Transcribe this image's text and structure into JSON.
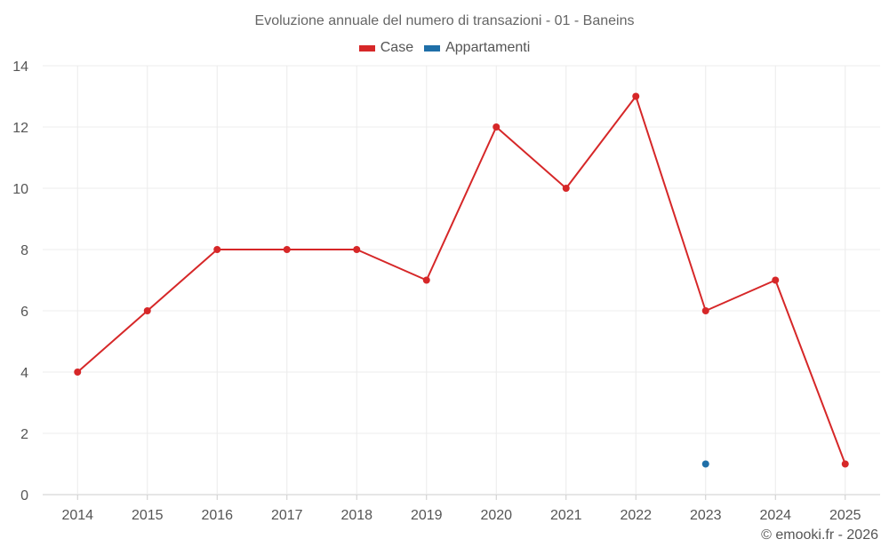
{
  "chart_data": {
    "type": "line",
    "title": "Evoluzione annuale del numero di transazioni - 01 - Baneins",
    "xlabel": "",
    "ylabel": "",
    "categories": [
      "2014",
      "2015",
      "2016",
      "2017",
      "2018",
      "2019",
      "2020",
      "2021",
      "2022",
      "2023",
      "2024",
      "2025"
    ],
    "ylim": [
      0,
      14
    ],
    "yticks": [
      0,
      2,
      4,
      6,
      8,
      10,
      12,
      14
    ],
    "grid": true,
    "legend_position": "top-center",
    "series": [
      {
        "name": "Case",
        "color": "#d62728",
        "values": [
          4,
          6,
          8,
          8,
          8,
          7,
          12,
          10,
          13,
          6,
          7,
          1
        ]
      },
      {
        "name": "Appartamenti",
        "color": "#1f6fa8",
        "values": [
          null,
          null,
          null,
          null,
          null,
          null,
          null,
          null,
          null,
          1,
          null,
          null
        ]
      }
    ]
  },
  "credit": "© emooki.fr - 2026"
}
